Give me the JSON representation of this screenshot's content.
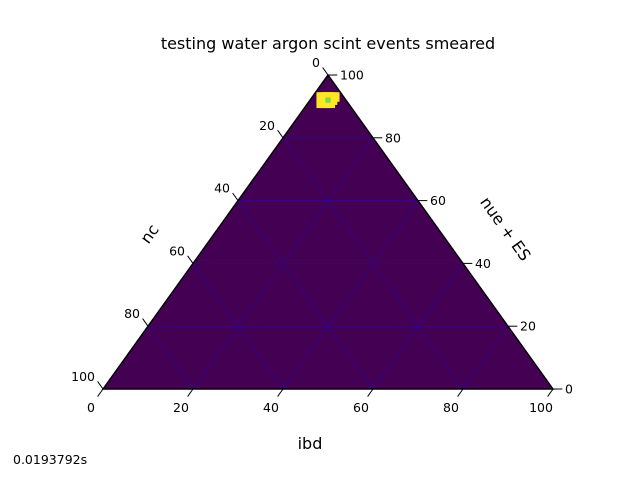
{
  "chart_data": {
    "type": "heatmap",
    "subtype": "ternary",
    "title": "testing water argon scint events smeared",
    "axes": {
      "bottom": {
        "label": "ibd",
        "ticks": [
          "0",
          "20",
          "40",
          "60",
          "80",
          "100"
        ]
      },
      "right": {
        "label": "nue + ES",
        "ticks": [
          "0",
          "20",
          "40",
          "60",
          "80",
          "100"
        ]
      },
      "left": {
        "label": "nc",
        "ticks": [
          "0",
          "20",
          "40",
          "60",
          "80",
          "100"
        ]
      }
    },
    "scale": 100,
    "grid": true,
    "colormap": "viridis",
    "background_color": "#440154",
    "grid_color": "#0000ff",
    "hotspot": {
      "ibd": 4,
      "nue_es": 92,
      "nc": 4,
      "cells": [
        {
          "ibd": 3,
          "nue_es": 92,
          "intensity": 0.8
        },
        {
          "ibd": 4,
          "nue_es": 92,
          "intensity": 0.8
        },
        {
          "ibd": 5,
          "nue_es": 92,
          "intensity": 0.8
        },
        {
          "ibd": 4,
          "nue_es": 93,
          "intensity": 0.8
        },
        {
          "ibd": 4,
          "nue_es": 91,
          "intensity": 0.8
        },
        {
          "ibd": 3,
          "nue_es": 93,
          "intensity": 0.8
        },
        {
          "ibd": 5,
          "nue_es": 91,
          "intensity": 0.8
        },
        {
          "ibd": 2,
          "nue_es": 93,
          "intensity": 0.8
        },
        {
          "ibd": 5,
          "nue_es": 93,
          "intensity": 0.8
        },
        {
          "ibd": 3,
          "nue_es": 91,
          "intensity": 0.8
        },
        {
          "ibd": 4,
          "nue_es": 92,
          "intensity": 1.0
        }
      ]
    }
  },
  "footer": {
    "timing": "0.0193792s"
  }
}
